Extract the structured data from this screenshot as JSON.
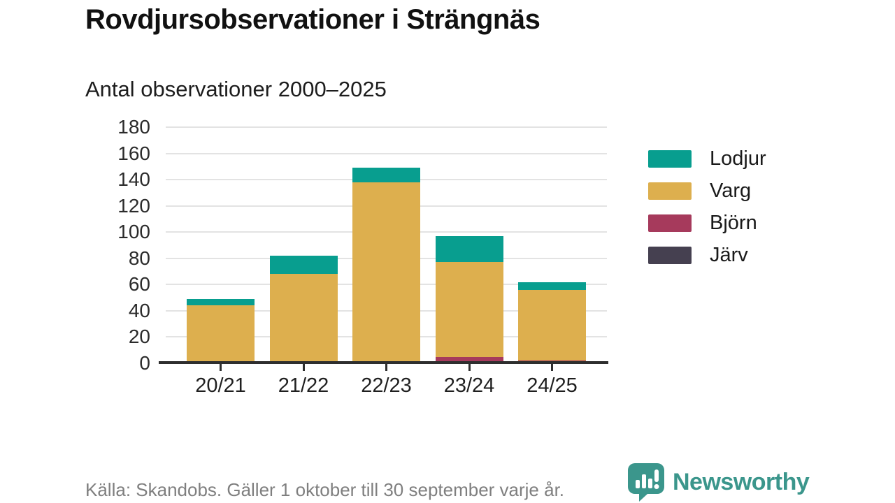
{
  "title": "Rovdjursobservationer i Strängnäs",
  "subtitle": "Antal observationer 2000–2025",
  "footer": {
    "source": "Källa: Skandobs. Gäller 1 oktober till 30 september varje år.",
    "brand": "Newsworthy"
  },
  "colors": {
    "lodjur": "#089e8f",
    "varg": "#ddaf4e",
    "bjorn": "#a63a5c",
    "jarv": "#454050",
    "brand_teal": "#3b968c",
    "axis": "#2e2e2e",
    "grid": "#e3e3e3",
    "title_text": "#111111",
    "muted_text": "#7f7f7f"
  },
  "chart_data": {
    "type": "bar",
    "stacked": true,
    "title": "Rovdjursobservationer i Strängnäs",
    "subtitle": "Antal observationer 2000–2025",
    "categories": [
      "20/21",
      "21/22",
      "22/23",
      "23/24",
      "24/25"
    ],
    "series": [
      {
        "name": "Lodjur",
        "color": "#089e8f",
        "values": [
          5,
          14,
          11,
          20,
          6
        ]
      },
      {
        "name": "Varg",
        "color": "#ddaf4e",
        "values": [
          44,
          68,
          138,
          72,
          54
        ]
      },
      {
        "name": "Björn",
        "color": "#a63a5c",
        "values": [
          0,
          0,
          0,
          5,
          2
        ]
      },
      {
        "name": "Järv",
        "color": "#454050",
        "values": [
          0,
          0,
          0,
          0,
          0
        ]
      }
    ],
    "totals": [
      49,
      82,
      149,
      97,
      62
    ],
    "xlabel": "",
    "ylabel": "",
    "ylim": [
      0,
      180
    ],
    "yticks": [
      0,
      20,
      40,
      60,
      80,
      100,
      120,
      140,
      160,
      180
    ],
    "grid": true,
    "legend_position": "right"
  }
}
